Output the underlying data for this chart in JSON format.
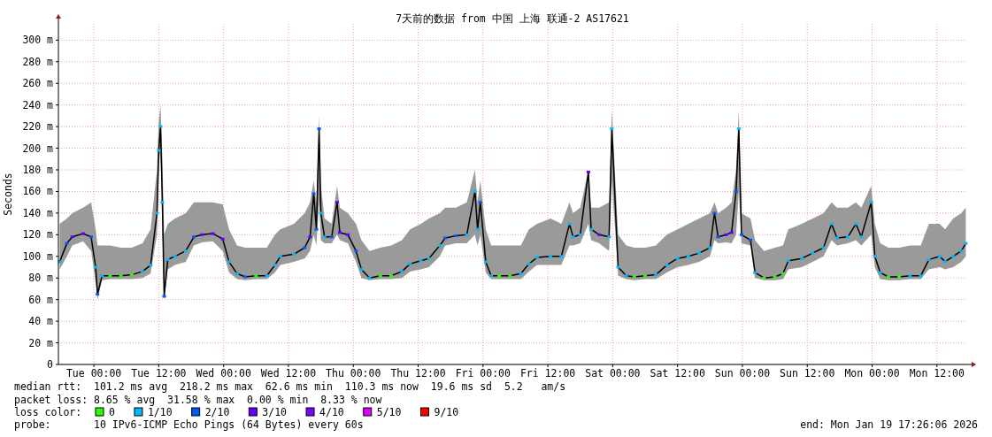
{
  "chart_data": {
    "type": "line",
    "title": "7天前的数据 from 中国 上海 联通-2 AS17621",
    "ylabel": "Seconds",
    "legend_title": "loss color:",
    "legend": "bottom",
    "grid": true,
    "xlim": [
      "2026-01-12T17:26",
      "2026-01-19T17:26"
    ],
    "xticks": [
      {
        "value": "2026-01-13T00:00",
        "label": "Tue 00:00"
      },
      {
        "value": "2026-01-13T12:00",
        "label": "Tue 12:00"
      },
      {
        "value": "2026-01-14T00:00",
        "label": "Wed 00:00"
      },
      {
        "value": "2026-01-14T12:00",
        "label": "Wed 12:00"
      },
      {
        "value": "2026-01-15T00:00",
        "label": "Thu 00:00"
      },
      {
        "value": "2026-01-15T12:00",
        "label": "Thu 12:00"
      },
      {
        "value": "2026-01-16T00:00",
        "label": "Fri 00:00"
      },
      {
        "value": "2026-01-16T12:00",
        "label": "Fri 12:00"
      },
      {
        "value": "2026-01-17T00:00",
        "label": "Sat 00:00"
      },
      {
        "value": "2026-01-17T12:00",
        "label": "Sat 12:00"
      },
      {
        "value": "2026-01-18T00:00",
        "label": "Sun 00:00"
      },
      {
        "value": "2026-01-18T12:00",
        "label": "Sun 12:00"
      },
      {
        "value": "2026-01-19T00:00",
        "label": "Mon 00:00"
      },
      {
        "value": "2026-01-19T12:00",
        "label": "Mon 12:00"
      }
    ],
    "ylim": [
      0,
      315
    ],
    "yticks": [
      0,
      {
        "value": 20,
        "label": "20 m"
      },
      {
        "value": 40,
        "label": "40 m"
      },
      {
        "value": 60,
        "label": "60 m"
      },
      {
        "value": 80,
        "label": "80 m"
      },
      {
        "value": 100,
        "label": "100 m"
      },
      {
        "value": 120,
        "label": "120 m"
      },
      {
        "value": 140,
        "label": "140 m"
      },
      {
        "value": 160,
        "label": "160 m"
      },
      {
        "value": 180,
        "label": "180 m"
      },
      {
        "value": 200,
        "label": "200 m"
      },
      {
        "value": 220,
        "label": "220 m"
      },
      {
        "value": 240,
        "label": "240 m"
      },
      {
        "value": 260,
        "label": "260 m"
      },
      {
        "value": 280,
        "label": "280 m"
      },
      {
        "value": 300,
        "label": "300 m"
      }
    ],
    "annotations": [
      "median rtt:  101.2 ms avg  218.2 ms max  62.6 ms min  110.3 ms now  19.6 ms sd  5.2   am/s",
      "packet loss: 8.65 % avg  31.58 % max  0.00 % min  8.33 % now",
      "probe:       10 IPv6-ICMP Echo Pings (64 Bytes) every 60s",
      "end: Mon Jan 19 17:26:06 2026"
    ],
    "series": [
      {
        "color": "#000000",
        "x": [
          "2026-01-12T17:40",
          "2026-01-12T19:00",
          "2026-01-12T20:00",
          "2026-01-12T22:00",
          "2026-01-12T23:30",
          "2026-01-13T00:20",
          "2026-01-13T00:40",
          "2026-01-13T01:30",
          "2026-01-13T03:00",
          "2026-01-13T05:00",
          "2026-01-13T07:00",
          "2026-01-13T09:00",
          "2026-01-13T10:30",
          "2026-01-13T11:40",
          "2026-01-13T12:00",
          "2026-01-13T12:20",
          "2026-01-13T12:40",
          "2026-01-13T13:00",
          "2026-01-13T13:40",
          "2026-01-13T15:00",
          "2026-01-13T17:00",
          "2026-01-13T18:30",
          "2026-01-13T20:00",
          "2026-01-13T22:00",
          "2026-01-13T23:50",
          "2026-01-14T01:00",
          "2026-01-14T02:30",
          "2026-01-14T04:00",
          "2026-01-14T06:00",
          "2026-01-14T08:00",
          "2026-01-14T09:30",
          "2026-01-14T10:30",
          "2026-01-14T13:00",
          "2026-01-14T15:00",
          "2026-01-14T16:00",
          "2026-01-14T16:40",
          "2026-01-14T17:10",
          "2026-01-14T17:40",
          "2026-01-14T18:00",
          "2026-01-14T18:40",
          "2026-01-14T20:00",
          "2026-01-14T21:00",
          "2026-01-14T21:30",
          "2026-01-14T23:00",
          "2026-01-15T00:30",
          "2026-01-15T01:30",
          "2026-01-15T03:00",
          "2026-01-15T05:00",
          "2026-01-15T07:00",
          "2026-01-15T09:00",
          "2026-01-15T10:30",
          "2026-01-15T12:30",
          "2026-01-15T14:00",
          "2026-01-15T16:00",
          "2026-01-15T17:00",
          "2026-01-15T19:00",
          "2026-01-15T21:00",
          "2026-01-15T22:30",
          "2026-01-15T23:00",
          "2026-01-15T23:30",
          "2026-01-16T00:30",
          "2026-01-16T01:30",
          "2026-01-16T03:00",
          "2026-01-16T05:00",
          "2026-01-16T07:00",
          "2026-01-16T08:30",
          "2026-01-16T10:00",
          "2026-01-16T12:30",
          "2026-01-16T14:30",
          "2026-01-16T16:00",
          "2026-01-16T16:40",
          "2026-01-16T18:00",
          "2026-01-16T19:30",
          "2026-01-16T20:00",
          "2026-01-16T21:30",
          "2026-01-16T23:20",
          "2026-01-16T23:50",
          "2026-01-17T01:00",
          "2026-01-17T02:30",
          "2026-01-17T04:00",
          "2026-01-17T06:00",
          "2026-01-17T08:00",
          "2026-01-17T10:00",
          "2026-01-17T12:00",
          "2026-01-17T14:00",
          "2026-01-17T16:00",
          "2026-01-17T18:00",
          "2026-01-17T18:50",
          "2026-01-17T19:30",
          "2026-01-17T21:00",
          "2026-01-17T22:00",
          "2026-01-17T22:50",
          "2026-01-17T23:20",
          "2026-01-17T23:50",
          "2026-01-18T01:30",
          "2026-01-18T02:20",
          "2026-01-18T04:00",
          "2026-01-18T06:00",
          "2026-01-18T07:30",
          "2026-01-18T08:30",
          "2026-01-18T11:00",
          "2026-01-18T13:00",
          "2026-01-18T15:00",
          "2026-01-18T16:30",
          "2026-01-18T17:30",
          "2026-01-18T19:30",
          "2026-01-18T21:00",
          "2026-01-18T22:00",
          "2026-01-18T23:50",
          "2026-01-19T00:30",
          "2026-01-19T01:30",
          "2026-01-19T03:00",
          "2026-01-19T05:00",
          "2026-01-19T07:00",
          "2026-01-19T09:00",
          "2026-01-19T10:30",
          "2026-01-19T12:30",
          "2026-01-19T13:30",
          "2026-01-19T15:00",
          "2026-01-19T16:30",
          "2026-01-19T17:20"
        ],
        "values": [
          95,
          112,
          118,
          121,
          118,
          90,
          65,
          82,
          82,
          82,
          83,
          86,
          92,
          140,
          198,
          220,
          150,
          63,
          97,
          100,
          105,
          118,
          120,
          121,
          116,
          95,
          84,
          81,
          82,
          82,
          92,
          100,
          102,
          108,
          118,
          158,
          125,
          218,
          140,
          118,
          118,
          150,
          122,
          120,
          105,
          88,
          80,
          82,
          82,
          86,
          93,
          96,
          98,
          110,
          117,
          119,
          120,
          160,
          125,
          150,
          95,
          82,
          82,
          82,
          84,
          93,
          99,
          100,
          100,
          130,
          118,
          120,
          178,
          125,
          120,
          118,
          218,
          90,
          82,
          81,
          82,
          83,
          92,
          98,
          100,
          103,
          108,
          140,
          118,
          120,
          122,
          160,
          218,
          120,
          115,
          85,
          80,
          81,
          84,
          96,
          98,
          103,
          108,
          130,
          117,
          118,
          130,
          118,
          150,
          100,
          85,
          81,
          81,
          82,
          82,
          97,
          100,
          95,
          100,
          105,
          112
        ],
        "lower": [
          88,
          100,
          110,
          114,
          105,
          75,
          60,
          78,
          79,
          79,
          79,
          80,
          84,
          120,
          185,
          200,
          120,
          60,
          88,
          92,
          95,
          110,
          113,
          114,
          105,
          85,
          79,
          78,
          79,
          79,
          85,
          92,
          95,
          98,
          105,
          120,
          110,
          150,
          115,
          112,
          112,
          120,
          115,
          112,
          95,
          80,
          78,
          79,
          79,
          80,
          86,
          88,
          90,
          100,
          110,
          112,
          112,
          120,
          110,
          120,
          85,
          79,
          79,
          79,
          79,
          86,
          92,
          92,
          92,
          110,
          110,
          112,
          130,
          115,
          112,
          105,
          170,
          82,
          79,
          78,
          79,
          79,
          85,
          90,
          92,
          95,
          100,
          115,
          112,
          113,
          112,
          120,
          160,
          112,
          110,
          80,
          78,
          78,
          79,
          88,
          90,
          95,
          100,
          115,
          110,
          112,
          115,
          110,
          120,
          90,
          79,
          78,
          78,
          79,
          79,
          88,
          90,
          88,
          90,
          95,
          100
        ],
        "upper": [
          130,
          135,
          140,
          145,
          150,
          125,
          110,
          110,
          110,
          108,
          108,
          112,
          125,
          180,
          225,
          240,
          190,
          120,
          130,
          135,
          140,
          150,
          150,
          150,
          148,
          125,
          110,
          108,
          108,
          108,
          120,
          125,
          130,
          140,
          150,
          170,
          150,
          230,
          165,
          135,
          130,
          165,
          145,
          140,
          130,
          115,
          105,
          108,
          110,
          115,
          125,
          130,
          135,
          140,
          145,
          145,
          150,
          180,
          150,
          170,
          125,
          110,
          110,
          110,
          110,
          125,
          130,
          135,
          130,
          150,
          140,
          145,
          180,
          145,
          145,
          150,
          235,
          120,
          110,
          108,
          108,
          110,
          120,
          125,
          130,
          135,
          140,
          150,
          140,
          145,
          150,
          180,
          235,
          140,
          135,
          115,
          105,
          108,
          110,
          125,
          130,
          135,
          140,
          150,
          145,
          145,
          150,
          145,
          165,
          130,
          112,
          108,
          108,
          110,
          110,
          130,
          130,
          125,
          135,
          140,
          145
        ]
      },
      {
        "type": "scatter",
        "marker": "square",
        "name": "0",
        "color": "#26ff00",
        "x": [
          "2026-01-13T03:00",
          "2026-01-13T05:00",
          "2026-01-13T07:00",
          "2026-01-14T06:00",
          "2026-01-15T05:00",
          "2026-01-15T07:00",
          "2026-01-16T03:00",
          "2026-01-16T05:00",
          "2026-01-17T04:00",
          "2026-01-17T06:00",
          "2026-01-18T04:00",
          "2026-01-18T06:00",
          "2026-01-18T07:30",
          "2026-01-19T03:00",
          "2026-01-19T05:00"
        ],
        "values": [
          82,
          82,
          83,
          82,
          82,
          82,
          82,
          82,
          81,
          82,
          80,
          81,
          84,
          81,
          81
        ]
      },
      {
        "type": "scatter",
        "marker": "square",
        "name": "1/10",
        "color": "#00b8ff",
        "x": [
          "2026-01-12T17:40",
          "2026-01-13T00:20",
          "2026-01-13T01:30",
          "2026-01-13T09:00",
          "2026-01-13T10:30",
          "2026-01-13T11:40",
          "2026-01-13T12:00",
          "2026-01-13T12:20",
          "2026-01-13T12:40",
          "2026-01-13T13:40",
          "2026-01-13T15:00",
          "2026-01-13T17:00",
          "2026-01-14T01:00",
          "2026-01-14T02:30",
          "2026-01-14T08:00",
          "2026-01-14T09:30",
          "2026-01-14T10:30",
          "2026-01-14T13:00",
          "2026-01-14T18:00",
          "2026-01-14T18:40",
          "2026-01-15T01:30",
          "2026-01-15T03:00",
          "2026-01-15T09:00",
          "2026-01-15T10:30",
          "2026-01-15T12:30",
          "2026-01-15T14:00",
          "2026-01-15T16:00",
          "2026-01-15T21:00",
          "2026-01-15T22:30",
          "2026-01-15T23:00",
          "2026-01-16T00:30",
          "2026-01-16T01:30",
          "2026-01-16T07:00",
          "2026-01-16T08:30",
          "2026-01-16T10:00",
          "2026-01-16T12:30",
          "2026-01-16T14:30",
          "2026-01-16T16:00",
          "2026-01-16T16:40",
          "2026-01-16T18:00",
          "2026-01-16T20:00",
          "2026-01-16T23:20",
          "2026-01-16T23:50",
          "2026-01-17T01:00",
          "2026-01-17T02:30",
          "2026-01-17T08:00",
          "2026-01-17T10:00",
          "2026-01-17T12:00",
          "2026-01-17T14:00",
          "2026-01-17T16:00",
          "2026-01-17T18:00",
          "2026-01-17T23:20",
          "2026-01-18T02:20",
          "2026-01-18T08:30",
          "2026-01-18T11:00",
          "2026-01-18T13:00",
          "2026-01-18T15:00",
          "2026-01-18T16:30",
          "2026-01-18T17:30",
          "2026-01-18T19:30",
          "2026-01-18T21:00",
          "2026-01-18T22:00",
          "2026-01-18T23:50",
          "2026-01-19T00:30",
          "2026-01-19T01:30",
          "2026-01-19T07:00",
          "2026-01-19T09:00",
          "2026-01-19T10:30",
          "2026-01-19T12:30",
          "2026-01-19T13:30",
          "2026-01-19T15:00",
          "2026-01-19T16:30",
          "2026-01-19T17:20"
        ],
        "values": [
          95,
          90,
          82,
          86,
          92,
          140,
          198,
          220,
          150,
          97,
          100,
          105,
          95,
          84,
          82,
          92,
          100,
          102,
          140,
          118,
          88,
          80,
          86,
          93,
          96,
          98,
          110,
          120,
          160,
          125,
          95,
          82,
          84,
          93,
          99,
          100,
          100,
          130,
          118,
          120,
          125,
          118,
          218,
          90,
          82,
          83,
          92,
          98,
          100,
          103,
          108,
          218,
          85,
          96,
          98,
          103,
          108,
          130,
          117,
          118,
          130,
          118,
          150,
          100,
          85,
          82,
          82,
          97,
          100,
          95,
          100,
          105,
          112
        ]
      },
      {
        "type": "scatter",
        "marker": "square",
        "name": "2/10",
        "color": "#0059ff",
        "x": [
          "2026-01-12T19:00",
          "2026-01-12T23:30",
          "2026-01-13T00:40",
          "2026-01-13T13:00",
          "2026-01-13T18:30",
          "2026-01-14T04:00",
          "2026-01-14T15:00",
          "2026-01-14T16:40",
          "2026-01-14T17:10",
          "2026-01-14T17:40",
          "2026-01-14T20:00",
          "2026-01-15T00:30",
          "2026-01-15T17:00",
          "2026-01-15T19:00",
          "2026-01-15T23:30",
          "2026-01-17T18:50",
          "2026-01-17T19:30",
          "2026-01-17T22:50",
          "2026-01-17T23:50",
          "2026-01-18T01:30"
        ],
        "values": [
          112,
          118,
          65,
          63,
          118,
          81,
          108,
          158,
          125,
          218,
          118,
          105,
          117,
          119,
          150,
          140,
          118,
          160,
          120,
          115
        ]
      },
      {
        "type": "scatter",
        "marker": "square",
        "name": "3/10",
        "color": "#5e00ff",
        "x": [
          "2026-01-12T20:00",
          "2026-01-12T22:00",
          "2026-01-13T20:00",
          "2026-01-13T22:00",
          "2026-01-13T23:50",
          "2026-01-14T16:00",
          "2026-01-14T21:00",
          "2026-01-14T21:30",
          "2026-01-14T23:00",
          "2026-01-16T19:30",
          "2026-01-16T21:30",
          "2026-01-17T21:00",
          "2026-01-17T22:00"
        ],
        "values": [
          118,
          121,
          120,
          121,
          116,
          118,
          150,
          122,
          120,
          178,
          120,
          120,
          122
        ]
      },
      {
        "type": "scatter",
        "name": "4/10",
        "color": "#7e00ff"
      },
      {
        "type": "scatter",
        "name": "5/10",
        "color": "#dd00ff"
      },
      {
        "type": "scatter",
        "name": "9/10",
        "color": "#ff0000"
      }
    ]
  }
}
